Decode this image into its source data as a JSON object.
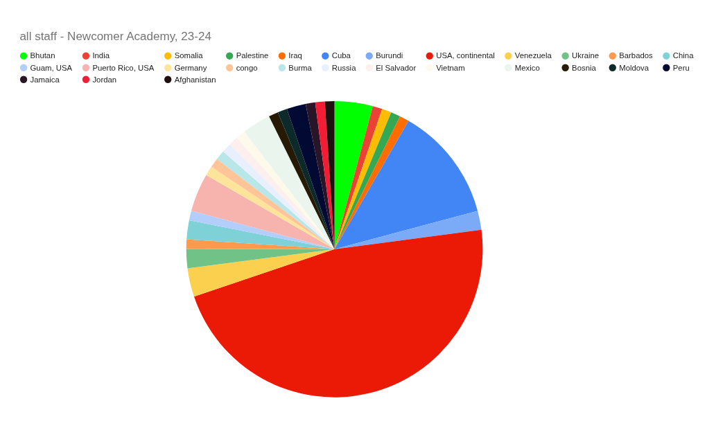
{
  "chart_data": {
    "type": "pie",
    "title": "all staff - Newcomer Academy, 23-24",
    "legend": "top",
    "categories": [
      "Bhutan",
      "India",
      "Somalia",
      "Palestine",
      "Iraq",
      "Cuba",
      "Burundi",
      "USA, continental",
      "Venezuela",
      "Ukraine",
      "Barbados",
      "China",
      "Guam, USA",
      "Puerto Rico, USA",
      "Germany",
      "congo",
      "Burma",
      "Russia",
      "El Salvador",
      "Vietnam",
      "Mexico",
      "Bosnia",
      "Moldova",
      "Peru",
      "Jamaica",
      "Jordan",
      "Afghanistan"
    ],
    "values": [
      4.17,
      1.04,
      1.04,
      1.04,
      1.04,
      12.5,
      2.08,
      46.9,
      3.13,
      2.08,
      1.04,
      2.08,
      1.04,
      4.17,
      1.04,
      1.04,
      1.04,
      1.04,
      1.04,
      1.04,
      3.13,
      1.04,
      1.04,
      2.08,
      1.04,
      1.04,
      1.04
    ],
    "colors": [
      "#00ff00",
      "#ea4335",
      "#fbbc04",
      "#34a853",
      "#ff6d01",
      "#4285f4",
      "#7baaf7",
      "#ea1a07",
      "#fcd04f",
      "#71c287",
      "#ff994d",
      "#7ed1d7",
      "#b3cefb",
      "#f7b4ae",
      "#fde49b",
      "#ffc599",
      "#b9e6e9",
      "#e9f0fd",
      "#fcefee",
      "#fefaeb",
      "#eaf6ed",
      "#271a05",
      "#0d2a2a",
      "#020a33",
      "#281628",
      "#f31c35",
      "#200f0f"
    ]
  }
}
